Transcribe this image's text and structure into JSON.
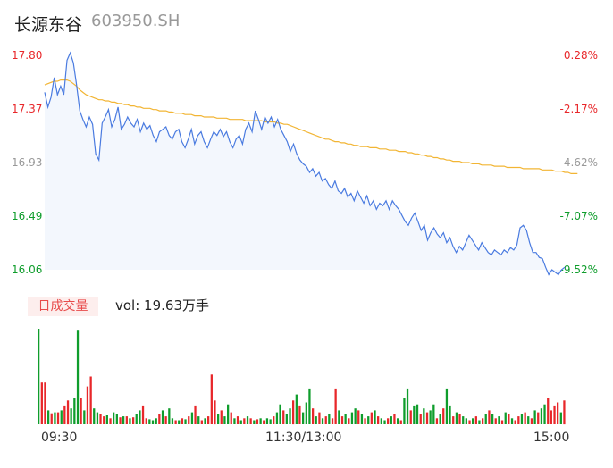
{
  "header": {
    "name": "长源东谷",
    "code": "603950.SH"
  },
  "colors": {
    "up": "#e8272a",
    "down": "#0f9d2c",
    "flat": "#999999",
    "price_line": "#4a7be0",
    "avg_line": "#f2b534"
  },
  "price_axis": {
    "labels": [
      "17.80",
      "17.37",
      "16.93",
      "16.49",
      "16.06"
    ],
    "pct_labels": [
      "0.28%",
      "-2.17%",
      "-4.62%",
      "-7.07%",
      "-9.52%"
    ]
  },
  "volume_panel": {
    "tab_label": "日成交量",
    "vol_text": "vol: 19.63万手"
  },
  "time_axis": {
    "labels": [
      "09:30",
      "11:30/13:00",
      "15:00"
    ]
  },
  "chart_data": {
    "type": "line",
    "xlabel": "",
    "ylabel": "",
    "ylim": [
      16.06,
      17.8
    ],
    "series": [
      {
        "values": [
          17.5,
          17.38,
          17.46,
          17.62,
          17.48,
          17.55,
          17.48,
          17.76,
          17.82,
          17.74,
          17.56,
          17.35,
          17.28,
          17.22,
          17.3,
          17.24,
          17.0,
          16.95,
          17.25,
          17.3,
          17.36,
          17.22,
          17.28,
          17.38,
          17.2,
          17.24,
          17.3,
          17.25,
          17.22,
          17.28,
          17.18,
          17.25,
          17.2,
          17.23,
          17.15,
          17.1,
          17.18,
          17.2,
          17.22,
          17.15,
          17.12,
          17.18,
          17.2,
          17.1,
          17.05,
          17.12,
          17.2,
          17.08,
          17.15,
          17.18,
          17.1,
          17.05,
          17.12,
          17.18,
          17.15,
          17.2,
          17.14,
          17.18,
          17.1,
          17.05,
          17.12,
          17.15,
          17.08,
          17.2,
          17.25,
          17.18,
          17.35,
          17.28,
          17.2,
          17.3,
          17.25,
          17.3,
          17.22,
          17.28,
          17.2,
          17.15,
          17.1,
          17.02,
          17.08,
          17.0,
          16.95,
          16.92,
          16.9,
          16.85,
          16.88,
          16.82,
          16.85,
          16.78,
          16.8,
          16.75,
          16.72,
          16.78,
          16.7,
          16.68,
          16.72,
          16.65,
          16.68,
          16.62,
          16.7,
          16.65,
          16.6,
          16.66,
          16.58,
          16.62,
          16.55,
          16.6,
          16.58,
          16.62,
          16.55,
          16.62,
          16.58,
          16.55,
          16.5,
          16.45,
          16.42,
          16.48,
          16.52,
          16.45,
          16.38,
          16.42,
          16.3,
          16.36,
          16.4,
          16.35,
          16.32,
          16.36,
          16.28,
          16.32,
          16.25,
          16.2,
          16.25,
          16.22,
          16.28,
          16.34,
          16.3,
          16.26,
          16.22,
          16.28,
          16.24,
          16.2,
          16.18,
          16.22,
          16.2,
          16.18,
          16.22,
          16.2,
          16.24,
          16.22,
          16.26,
          16.4,
          16.42,
          16.38,
          16.28,
          16.2,
          16.2,
          16.16,
          16.15,
          16.08,
          16.02,
          16.06,
          16.04,
          16.02,
          16.06,
          16.08
        ]
      },
      {
        "values": [
          17.56,
          17.57,
          17.58,
          17.59,
          17.59,
          17.6,
          17.6,
          17.6,
          17.59,
          17.57,
          17.55,
          17.52,
          17.5,
          17.48,
          17.47,
          17.46,
          17.45,
          17.44,
          17.44,
          17.43,
          17.43,
          17.42,
          17.42,
          17.41,
          17.41,
          17.4,
          17.4,
          17.39,
          17.39,
          17.38,
          17.38,
          17.37,
          17.37,
          17.37,
          17.36,
          17.36,
          17.35,
          17.35,
          17.35,
          17.34,
          17.34,
          17.33,
          17.33,
          17.33,
          17.32,
          17.32,
          17.32,
          17.31,
          17.31,
          17.31,
          17.3,
          17.3,
          17.3,
          17.3,
          17.29,
          17.29,
          17.29,
          17.29,
          17.28,
          17.28,
          17.28,
          17.28,
          17.28,
          17.27,
          17.27,
          17.27,
          17.27,
          17.27,
          17.27,
          17.26,
          17.26,
          17.26,
          17.26,
          17.25,
          17.25,
          17.24,
          17.24,
          17.23,
          17.22,
          17.21,
          17.2,
          17.19,
          17.18,
          17.17,
          17.16,
          17.15,
          17.14,
          17.13,
          17.12,
          17.12,
          17.11,
          17.1,
          17.1,
          17.09,
          17.09,
          17.08,
          17.08,
          17.07,
          17.07,
          17.06,
          17.06,
          17.06,
          17.05,
          17.05,
          17.05,
          17.04,
          17.04,
          17.04,
          17.03,
          17.03,
          17.03,
          17.02,
          17.02,
          17.02,
          17.01,
          17.01,
          17.0,
          17.0,
          16.99,
          16.99,
          16.98,
          16.98,
          16.97,
          16.97,
          16.96,
          16.96,
          16.95,
          16.95,
          16.94,
          16.94,
          16.94,
          16.93,
          16.93,
          16.93,
          16.92,
          16.92,
          16.92,
          16.91,
          16.91,
          16.91,
          16.91,
          16.9,
          16.9,
          16.9,
          16.9,
          16.89,
          16.89,
          16.89,
          16.89,
          16.89,
          16.88,
          16.88,
          16.88,
          16.88,
          16.88,
          16.88,
          16.87,
          16.87,
          16.87,
          16.87,
          16.86,
          16.86,
          16.86,
          16.85,
          16.85,
          16.84,
          16.84,
          16.84
        ]
      }
    ],
    "volume": [
      {
        "v": 96,
        "d": "down"
      },
      {
        "v": 42,
        "d": "up"
      },
      {
        "v": 42,
        "d": "up"
      },
      {
        "v": 14,
        "d": "down"
      },
      {
        "v": 11,
        "d": "up"
      },
      {
        "v": 12,
        "d": "down"
      },
      {
        "v": 12,
        "d": "up"
      },
      {
        "v": 14,
        "d": "down"
      },
      {
        "v": 18,
        "d": "up"
      },
      {
        "v": 24,
        "d": "up"
      },
      {
        "v": 16,
        "d": "down"
      },
      {
        "v": 26,
        "d": "down"
      },
      {
        "v": 94,
        "d": "down"
      },
      {
        "v": 26,
        "d": "up"
      },
      {
        "v": 14,
        "d": "down"
      },
      {
        "v": 38,
        "d": "up"
      },
      {
        "v": 48,
        "d": "up"
      },
      {
        "v": 16,
        "d": "down"
      },
      {
        "v": 12,
        "d": "down"
      },
      {
        "v": 10,
        "d": "up"
      },
      {
        "v": 8,
        "d": "up"
      },
      {
        "v": 9,
        "d": "down"
      },
      {
        "v": 6,
        "d": "up"
      },
      {
        "v": 12,
        "d": "down"
      },
      {
        "v": 10,
        "d": "down"
      },
      {
        "v": 7,
        "d": "up"
      },
      {
        "v": 8,
        "d": "down"
      },
      {
        "v": 8,
        "d": "up"
      },
      {
        "v": 6,
        "d": "down"
      },
      {
        "v": 7,
        "d": "up"
      },
      {
        "v": 10,
        "d": "down"
      },
      {
        "v": 14,
        "d": "down"
      },
      {
        "v": 18,
        "d": "up"
      },
      {
        "v": 6,
        "d": "up"
      },
      {
        "v": 5,
        "d": "down"
      },
      {
        "v": 4,
        "d": "down"
      },
      {
        "v": 6,
        "d": "down"
      },
      {
        "v": 10,
        "d": "up"
      },
      {
        "v": 14,
        "d": "down"
      },
      {
        "v": 8,
        "d": "up"
      },
      {
        "v": 16,
        "d": "down"
      },
      {
        "v": 6,
        "d": "down"
      },
      {
        "v": 4,
        "d": "up"
      },
      {
        "v": 4,
        "d": "down"
      },
      {
        "v": 6,
        "d": "up"
      },
      {
        "v": 5,
        "d": "down"
      },
      {
        "v": 8,
        "d": "up"
      },
      {
        "v": 12,
        "d": "down"
      },
      {
        "v": 18,
        "d": "up"
      },
      {
        "v": 8,
        "d": "down"
      },
      {
        "v": 4,
        "d": "up"
      },
      {
        "v": 6,
        "d": "down"
      },
      {
        "v": 8,
        "d": "up"
      },
      {
        "v": 50,
        "d": "up"
      },
      {
        "v": 24,
        "d": "up"
      },
      {
        "v": 10,
        "d": "down"
      },
      {
        "v": 14,
        "d": "up"
      },
      {
        "v": 8,
        "d": "down"
      },
      {
        "v": 20,
        "d": "down"
      },
      {
        "v": 12,
        "d": "up"
      },
      {
        "v": 6,
        "d": "down"
      },
      {
        "v": 8,
        "d": "up"
      },
      {
        "v": 4,
        "d": "down"
      },
      {
        "v": 6,
        "d": "up"
      },
      {
        "v": 8,
        "d": "down"
      },
      {
        "v": 6,
        "d": "up"
      },
      {
        "v": 4,
        "d": "down"
      },
      {
        "v": 5,
        "d": "up"
      },
      {
        "v": 6,
        "d": "down"
      },
      {
        "v": 4,
        "d": "up"
      },
      {
        "v": 6,
        "d": "down"
      },
      {
        "v": 5,
        "d": "down"
      },
      {
        "v": 8,
        "d": "up"
      },
      {
        "v": 12,
        "d": "down"
      },
      {
        "v": 20,
        "d": "down"
      },
      {
        "v": 14,
        "d": "up"
      },
      {
        "v": 10,
        "d": "down"
      },
      {
        "v": 16,
        "d": "down"
      },
      {
        "v": 24,
        "d": "up"
      },
      {
        "v": 30,
        "d": "down"
      },
      {
        "v": 18,
        "d": "up"
      },
      {
        "v": 12,
        "d": "down"
      },
      {
        "v": 22,
        "d": "down"
      },
      {
        "v": 36,
        "d": "down"
      },
      {
        "v": 16,
        "d": "up"
      },
      {
        "v": 8,
        "d": "down"
      },
      {
        "v": 12,
        "d": "up"
      },
      {
        "v": 6,
        "d": "down"
      },
      {
        "v": 8,
        "d": "up"
      },
      {
        "v": 10,
        "d": "down"
      },
      {
        "v": 6,
        "d": "up"
      },
      {
        "v": 36,
        "d": "up"
      },
      {
        "v": 14,
        "d": "down"
      },
      {
        "v": 8,
        "d": "up"
      },
      {
        "v": 10,
        "d": "down"
      },
      {
        "v": 6,
        "d": "up"
      },
      {
        "v": 12,
        "d": "down"
      },
      {
        "v": 16,
        "d": "down"
      },
      {
        "v": 14,
        "d": "up"
      },
      {
        "v": 10,
        "d": "down"
      },
      {
        "v": 6,
        "d": "up"
      },
      {
        "v": 8,
        "d": "down"
      },
      {
        "v": 12,
        "d": "up"
      },
      {
        "v": 14,
        "d": "down"
      },
      {
        "v": 8,
        "d": "up"
      },
      {
        "v": 6,
        "d": "down"
      },
      {
        "v": 4,
        "d": "down"
      },
      {
        "v": 6,
        "d": "up"
      },
      {
        "v": 8,
        "d": "down"
      },
      {
        "v": 10,
        "d": "up"
      },
      {
        "v": 6,
        "d": "down"
      },
      {
        "v": 4,
        "d": "up"
      },
      {
        "v": 26,
        "d": "down"
      },
      {
        "v": 36,
        "d": "down"
      },
      {
        "v": 14,
        "d": "up"
      },
      {
        "v": 18,
        "d": "down"
      },
      {
        "v": 20,
        "d": "down"
      },
      {
        "v": 10,
        "d": "up"
      },
      {
        "v": 16,
        "d": "down"
      },
      {
        "v": 12,
        "d": "up"
      },
      {
        "v": 14,
        "d": "down"
      },
      {
        "v": 20,
        "d": "down"
      },
      {
        "v": 6,
        "d": "up"
      },
      {
        "v": 10,
        "d": "down"
      },
      {
        "v": 16,
        "d": "up"
      },
      {
        "v": 36,
        "d": "down"
      },
      {
        "v": 18,
        "d": "down"
      },
      {
        "v": 8,
        "d": "up"
      },
      {
        "v": 12,
        "d": "down"
      },
      {
        "v": 10,
        "d": "up"
      },
      {
        "v": 8,
        "d": "down"
      },
      {
        "v": 6,
        "d": "down"
      },
      {
        "v": 4,
        "d": "up"
      },
      {
        "v": 6,
        "d": "down"
      },
      {
        "v": 8,
        "d": "up"
      },
      {
        "v": 4,
        "d": "down"
      },
      {
        "v": 6,
        "d": "up"
      },
      {
        "v": 10,
        "d": "down"
      },
      {
        "v": 14,
        "d": "up"
      },
      {
        "v": 10,
        "d": "down"
      },
      {
        "v": 6,
        "d": "up"
      },
      {
        "v": 8,
        "d": "down"
      },
      {
        "v": 4,
        "d": "up"
      },
      {
        "v": 12,
        "d": "down"
      },
      {
        "v": 10,
        "d": "up"
      },
      {
        "v": 6,
        "d": "down"
      },
      {
        "v": 4,
        "d": "up"
      },
      {
        "v": 8,
        "d": "up"
      },
      {
        "v": 10,
        "d": "down"
      },
      {
        "v": 12,
        "d": "up"
      },
      {
        "v": 8,
        "d": "down"
      },
      {
        "v": 6,
        "d": "up"
      },
      {
        "v": 14,
        "d": "down"
      },
      {
        "v": 12,
        "d": "up"
      },
      {
        "v": 16,
        "d": "down"
      },
      {
        "v": 20,
        "d": "down"
      },
      {
        "v": 26,
        "d": "up"
      },
      {
        "v": 14,
        "d": "up"
      },
      {
        "v": 18,
        "d": "up"
      },
      {
        "v": 22,
        "d": "up"
      },
      {
        "v": 12,
        "d": "down"
      },
      {
        "v": 24,
        "d": "up"
      }
    ]
  }
}
